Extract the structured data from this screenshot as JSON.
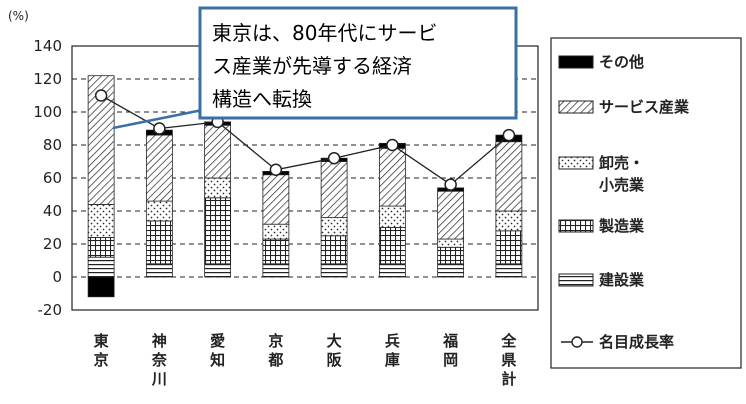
{
  "chart_data": {
    "type": "bar",
    "stacked": true,
    "unit": "(%)",
    "ylim": [
      -20,
      140
    ],
    "yticks": [
      "140",
      "120",
      "100",
      "80",
      "60",
      "40",
      "20",
      "0",
      "-20"
    ],
    "grid": true,
    "legend_position": "right",
    "categories": [
      "東京",
      "神奈川",
      "愛知",
      "京都",
      "大阪",
      "兵庫",
      "福岡",
      "全県計"
    ],
    "category_labels": [
      [
        "東",
        "京"
      ],
      [
        "神",
        "奈",
        "川"
      ],
      [
        "愛",
        "知"
      ],
      [
        "京",
        "都"
      ],
      [
        "大",
        "阪"
      ],
      [
        "兵",
        "庫"
      ],
      [
        "福",
        "岡"
      ],
      [
        "全",
        "県",
        "計"
      ]
    ],
    "series": [
      {
        "name": "建設業",
        "values": [
          12,
          8,
          8,
          8,
          8,
          8,
          8,
          8
        ]
      },
      {
        "name": "製造業",
        "values": [
          12,
          26,
          40,
          15,
          17,
          22,
          10,
          20
        ]
      },
      {
        "name": "卸売・小売業",
        "values": [
          20,
          12,
          12,
          9,
          11,
          13,
          5,
          12
        ]
      },
      {
        "name": "サービス産業",
        "values": [
          78,
          40,
          32,
          30,
          34,
          35,
          29,
          42
        ]
      },
      {
        "name": "その他",
        "values": [
          -12,
          3,
          2,
          2,
          2,
          3,
          2,
          4
        ]
      }
    ],
    "line": {
      "name": "名目成長率",
      "values": [
        110,
        90,
        94,
        65,
        72,
        80,
        56,
        86
      ]
    },
    "legend": [
      {
        "key": "その他",
        "lines": [
          "その他"
        ]
      },
      {
        "key": "サービス産業",
        "lines": [
          "サービス産業"
        ]
      },
      {
        "key": "卸売・小売業",
        "lines": [
          "卸売・",
          "小売業"
        ]
      },
      {
        "key": "製造業",
        "lines": [
          "製造業"
        ]
      },
      {
        "key": "建設業",
        "lines": [
          "建設業"
        ]
      },
      {
        "key": "名目成長率",
        "lines": [
          "名目成長率"
        ]
      }
    ],
    "annotation": [
      "東京は、80年代にサービ",
      "ス産業が先導する経済",
      "構造へ転換"
    ],
    "annotation_border_color": "#3a6fa8"
  }
}
